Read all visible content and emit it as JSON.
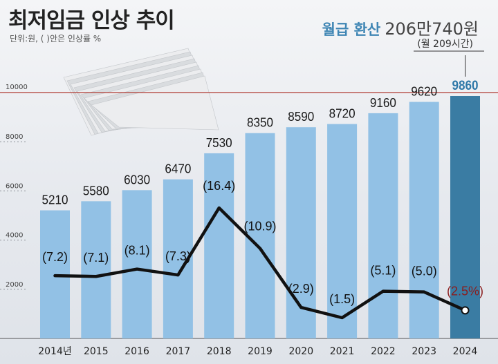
{
  "header": {
    "title": "최저임금 인상 추이",
    "unit_note": "단위:원, ( )안은 인상률 %"
  },
  "callout": {
    "lead": "월급 환산",
    "value": "206만740원",
    "detail": "(월 209시간)"
  },
  "colors": {
    "bar": "#92c1e5",
    "bar_highlight": "#3a7ca3",
    "line": "#111111",
    "reference_line": "#b03a32",
    "highlight_rate": "#8b1e1e",
    "highlight_value": "#2e78a8"
  },
  "chart_data": {
    "type": "bar",
    "categories": [
      "2014년",
      "2015",
      "2016",
      "2017",
      "2018",
      "2019",
      "2020",
      "2021",
      "2022",
      "2023",
      "2024"
    ],
    "series": [
      {
        "values": [
          5210,
          5580,
          6030,
          6470,
          7530,
          8350,
          8590,
          8720,
          9160,
          9620,
          9860
        ]
      }
    ],
    "rates": [
      7.2,
      7.1,
      8.1,
      7.3,
      16.4,
      10.9,
      2.9,
      1.5,
      5.1,
      5.0,
      2.5
    ],
    "value_labels": [
      "5210",
      "5580",
      "6030",
      "6470",
      "7530",
      "8350",
      "8590",
      "8720",
      "9160",
      "9620",
      "9860"
    ],
    "rate_labels": [
      "(7.2)",
      "(7.1)",
      "(8.1)",
      "(7.3)",
      "(16.4)",
      "(10.9)",
      "(2.9)",
      "(1.5)",
      "(5.1)",
      "(5.0)",
      "(2.5%)"
    ],
    "y_ticks": [
      2000,
      4000,
      6000,
      8000,
      10000
    ],
    "y_tick_labels": [
      "2000",
      "4000",
      "6000",
      "8000",
      "10000"
    ],
    "reference_value": 10000,
    "ylim": [
      0,
      10000
    ],
    "highlight_category": "2024",
    "grid": false,
    "legend": "none"
  }
}
